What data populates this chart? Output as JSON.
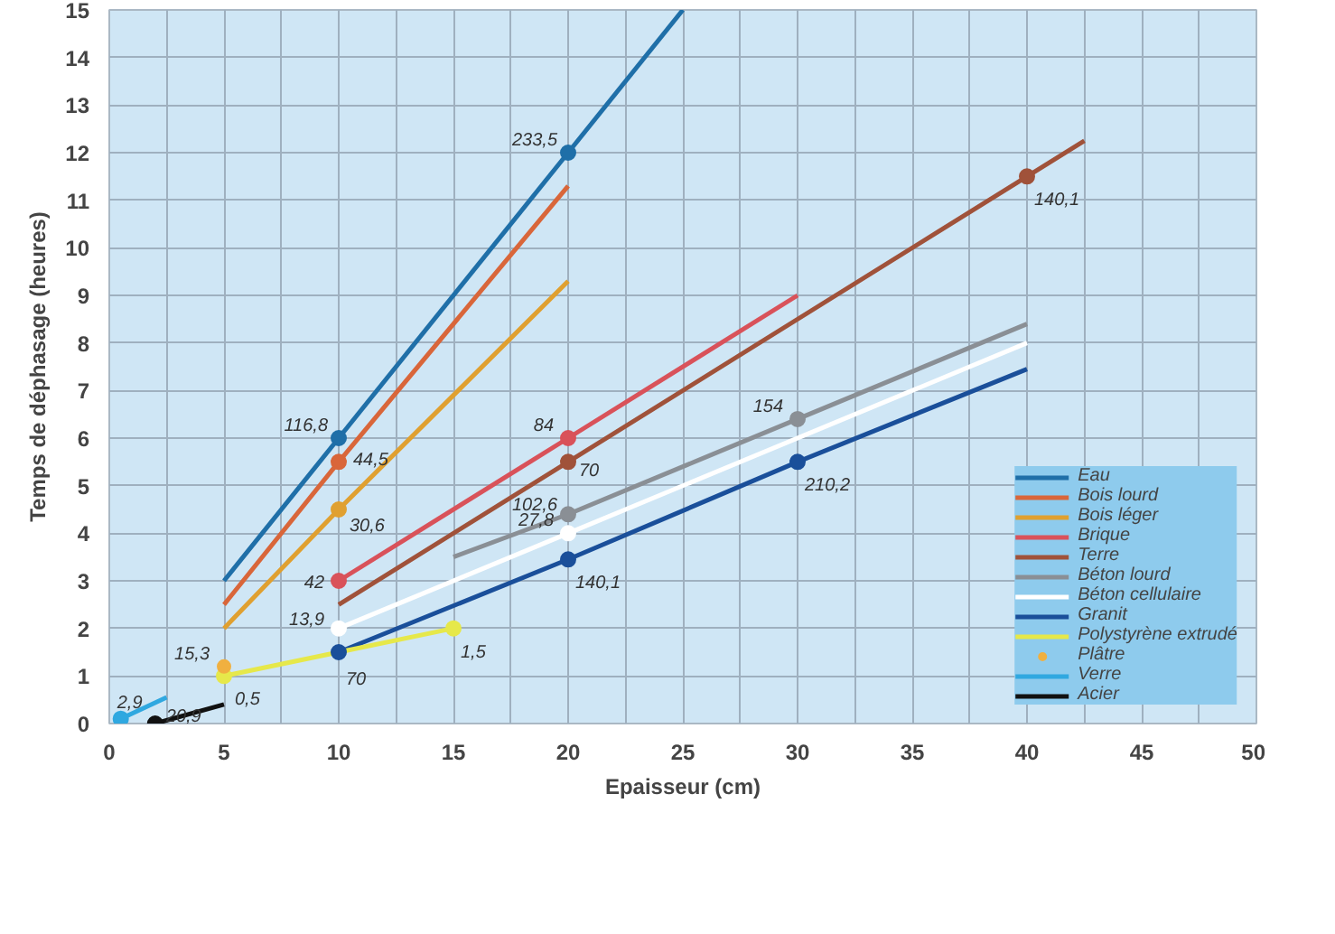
{
  "chart_data": {
    "type": "line",
    "xlabel": "Epaisseur (cm)",
    "ylabel": "Temps de déphasage (heures)",
    "xlim": [
      0,
      50
    ],
    "ylim": [
      0,
      15
    ],
    "xticks": [
      0,
      {
        "value": 2.5,
        "label": null
      },
      5,
      {
        "value": 7.5,
        "label": null
      },
      10,
      {
        "value": 12.5,
        "label": null
      },
      15,
      {
        "value": 17.5,
        "label": null
      },
      20,
      {
        "value": 22.5,
        "label": null
      },
      25,
      {
        "value": 27.5,
        "label": null
      },
      30,
      {
        "value": 32.5,
        "label": null
      },
      35,
      {
        "value": 37.5,
        "label": null
      },
      40,
      {
        "value": 42.5,
        "label": null
      },
      45,
      {
        "value": 47.5,
        "label": null
      },
      50
    ],
    "yticks": [
      0,
      1,
      2,
      3,
      4,
      5,
      6,
      7,
      8,
      9,
      10,
      11,
      12,
      13,
      14,
      15
    ],
    "grid": true,
    "legend": "bottom right",
    "line_style": "solid",
    "series": [
      {
        "name": "Eau",
        "color": "#1f6fa8",
        "x": [
          5,
          10,
          20,
          25
        ],
        "values": [
          3,
          6,
          12,
          15
        ]
      },
      {
        "name": "Bois lourd",
        "color": "#d9663a",
        "x": [
          5,
          10,
          20
        ],
        "values": [
          2.5,
          5.5,
          11.3
        ]
      },
      {
        "name": "Bois léger",
        "color": "#e0a030",
        "x": [
          5,
          10,
          20
        ],
        "values": [
          2,
          4.5,
          9.3
        ]
      },
      {
        "name": "Brique",
        "color": "#d9525a",
        "x": [
          10,
          20,
          30
        ],
        "values": [
          3,
          6,
          9
        ]
      },
      {
        "name": "Terre",
        "color": "#a0523a",
        "x": [
          10,
          20,
          40,
          42.5
        ],
        "values": [
          2.5,
          5.5,
          11.5,
          12.25
        ]
      },
      {
        "name": "Béton lourd",
        "color": "#8a8f95",
        "x": [
          15,
          20,
          30,
          40
        ],
        "values": [
          3.5,
          4.4,
          6.4,
          8.4
        ]
      },
      {
        "name": "Béton cellulaire",
        "color": "#ffffff",
        "x": [
          10,
          20,
          40
        ],
        "values": [
          2,
          4,
          8
        ]
      },
      {
        "name": "Granit",
        "color": "#1a4f9a",
        "x": [
          10,
          20,
          30,
          40
        ],
        "values": [
          1.5,
          3.45,
          5.5,
          7.45
        ]
      },
      {
        "name": "Polystyrène extrudé",
        "color": "#e6e84a",
        "x": [
          5,
          10,
          15
        ],
        "values": [
          1,
          1.5,
          2
        ]
      },
      {
        "name": "Plâtre",
        "type": "scatter",
        "marker": "circle",
        "color": "#f0b040",
        "x": [
          5
        ],
        "values": [
          1.2
        ]
      },
      {
        "name": "Verre",
        "color": "#30a8e0",
        "x": [
          0.5,
          2.5
        ],
        "values": [
          0.1,
          0.55
        ]
      },
      {
        "name": "Acier",
        "color": "#111111",
        "x": [
          2,
          5
        ],
        "values": [
          0,
          0.4
        ]
      },
      {
        "type": "scatter",
        "marker": "circle",
        "color": "#1f6fa8",
        "x": [
          10,
          20
        ],
        "values": [
          6,
          12
        ]
      },
      {
        "type": "scatter",
        "marker": "circle",
        "color": "#d9663a",
        "x": [
          10
        ],
        "values": [
          5.5
        ]
      },
      {
        "type": "scatter",
        "marker": "circle",
        "color": "#e0a030",
        "x": [
          10
        ],
        "values": [
          4.5
        ]
      },
      {
        "type": "scatter",
        "marker": "circle",
        "color": "#d9525a",
        "x": [
          10,
          20
        ],
        "values": [
          3,
          6
        ]
      },
      {
        "type": "scatter",
        "marker": "circle",
        "color": "#a0523a",
        "x": [
          20,
          40
        ],
        "values": [
          5.5,
          11.5
        ]
      },
      {
        "type": "scatter",
        "marker": "circle",
        "color": "#8a8f95",
        "x": [
          20,
          30
        ],
        "values": [
          4.4,
          6.4
        ]
      },
      {
        "type": "scatter",
        "marker": "circle",
        "color": "#ffffff",
        "x": [
          10,
          20
        ],
        "values": [
          2,
          4
        ]
      },
      {
        "type": "scatter",
        "marker": "circle",
        "color": "#1a4f9a",
        "x": [
          10,
          20,
          30
        ],
        "values": [
          1.5,
          3.45,
          5.5
        ]
      },
      {
        "type": "scatter",
        "marker": "circle",
        "color": "#e6e84a",
        "x": [
          5,
          15
        ],
        "values": [
          1,
          2
        ]
      },
      {
        "type": "scatter",
        "marker": "circle",
        "color": "#30a8e0",
        "x": [
          0.5
        ],
        "values": [
          0.1
        ]
      },
      {
        "type": "scatter",
        "marker": "circle",
        "color": "#111111",
        "x": [
          2
        ],
        "values": [
          0
        ]
      }
    ],
    "annotations": [
      {
        "text": "116,8",
        "x": 10,
        "y": 6
      },
      {
        "text": "233,5",
        "x": 20,
        "y": 12
      },
      {
        "text": "44,5",
        "x": 10,
        "y": 5.5
      },
      {
        "text": "30,6",
        "x": 10,
        "y": 4.5
      },
      {
        "text": "42",
        "x": 10,
        "y": 3
      },
      {
        "text": "84",
        "x": 20,
        "y": 6
      },
      {
        "text": "70",
        "x": 20,
        "y": 5.5
      },
      {
        "text": "140,1",
        "x": 40,
        "y": 11.5
      },
      {
        "text": "154",
        "x": 30,
        "y": 6.4
      },
      {
        "text": "102,6",
        "x": 20,
        "y": 4.4
      },
      {
        "text": "27,8",
        "x": 20,
        "y": 4
      },
      {
        "text": "13,9",
        "x": 10,
        "y": 2
      },
      {
        "text": "70",
        "x": 10,
        "y": 1.5
      },
      {
        "text": "140,1",
        "x": 20,
        "y": 3.45
      },
      {
        "text": "210,2",
        "x": 30,
        "y": 5.5
      },
      {
        "text": "1,5",
        "x": 15,
        "y": 2
      },
      {
        "text": "15,3",
        "x": 5,
        "y": 1.2
      },
      {
        "text": "0,5",
        "x": 5,
        "y": 1
      },
      {
        "text": "2,9",
        "x": 0.5,
        "y": 0.1
      },
      {
        "text": "20,9",
        "x": 2,
        "y": 0
      }
    ]
  }
}
